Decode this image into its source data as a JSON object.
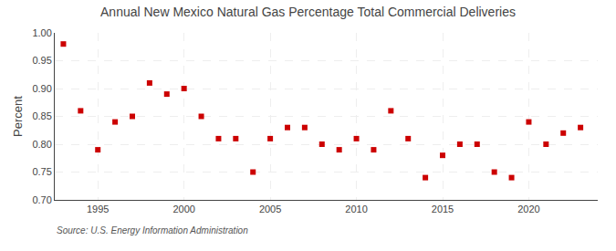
{
  "chart_data": {
    "type": "scatter",
    "title": "Annual New Mexico Natural Gas Percentage Total Commercial Deliveries",
    "y_label": "Percent",
    "annotations": [
      "Source: U.S. Energy Information Administration"
    ],
    "x": [
      1993,
      1994,
      1995,
      1996,
      1997,
      1998,
      1999,
      2000,
      2001,
      2002,
      2003,
      2004,
      2005,
      2006,
      2007,
      2008,
      2009,
      2010,
      2011,
      2012,
      2013,
      2014,
      2015,
      2016,
      2017,
      2018,
      2019,
      2020,
      2021,
      2022,
      2023
    ],
    "values": [
      0.98,
      0.86,
      0.79,
      0.84,
      0.85,
      0.91,
      0.89,
      0.9,
      0.85,
      0.81,
      0.81,
      0.75,
      0.81,
      0.83,
      0.83,
      0.8,
      0.79,
      0.81,
      0.79,
      0.86,
      0.81,
      0.74,
      0.78,
      0.8,
      0.8,
      0.75,
      0.74,
      0.84,
      0.8,
      0.82,
      0.83
    ],
    "color": "#cc0000",
    "marker": "square",
    "xlim": [
      1992.5,
      2024
    ],
    "xticks": [
      1995,
      2000,
      2005,
      2010,
      2015,
      2020
    ],
    "ylim": [
      0.7,
      1.0
    ],
    "yticks": [
      {
        "value": 0.7,
        "label": "0.70"
      },
      0.75,
      {
        "value": 0.8,
        "label": "0.80"
      },
      0.85,
      {
        "value": 0.9,
        "label": "0.90"
      },
      0.95,
      {
        "value": 1.0,
        "label": "1.00"
      }
    ],
    "grid": true
  }
}
